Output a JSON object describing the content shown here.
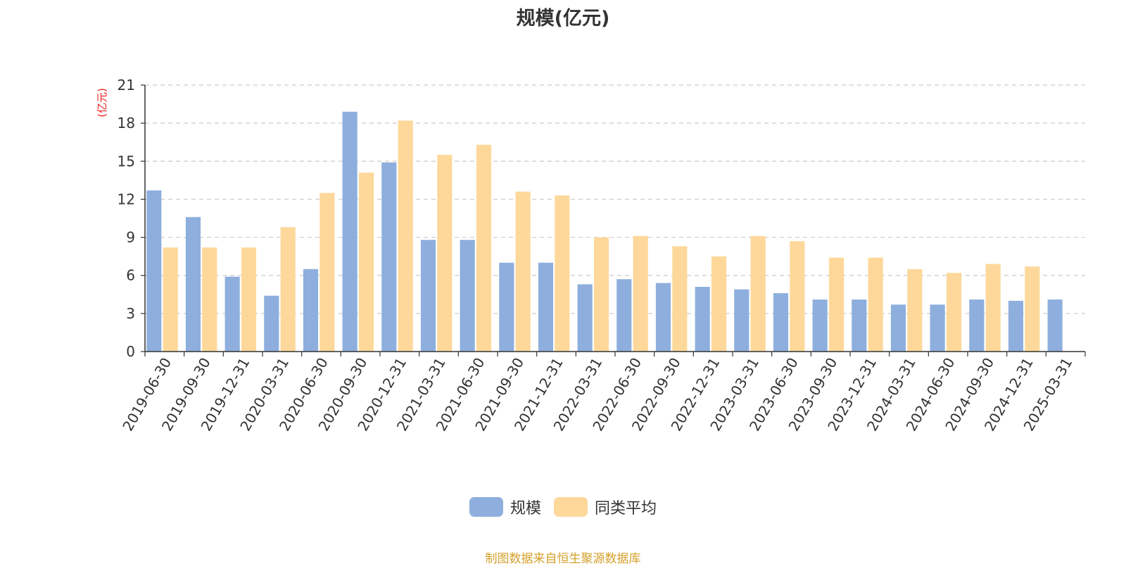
{
  "title": "规模(亿元)",
  "source_note": "制图数据来自恒生聚源数据库",
  "colors": {
    "series_1": "#8eafdd",
    "series_2": "#fdd89a",
    "unit_label": "#e8231f",
    "axis": "#333333",
    "grid": "#cccccc"
  },
  "chart_data": {
    "type": "bar",
    "title": "规模(亿元)",
    "ylabel": "(亿元)",
    "xlabel": "",
    "ylim": [
      0,
      21
    ],
    "yticks": [
      0,
      3,
      6,
      9,
      12,
      15,
      18,
      21
    ],
    "grid": true,
    "legend_position": "bottom",
    "categories": [
      "2019-06-30",
      "2019-09-30",
      "2019-12-31",
      "2020-03-31",
      "2020-06-30",
      "2020-09-30",
      "2020-12-31",
      "2021-03-31",
      "2021-06-30",
      "2021-09-30",
      "2021-12-31",
      "2022-03-31",
      "2022-06-30",
      "2022-09-30",
      "2022-12-31",
      "2023-03-31",
      "2023-06-30",
      "2023-09-30",
      "2023-12-31",
      "2024-03-31",
      "2024-06-30",
      "2024-09-30",
      "2024-12-31",
      "2025-03-31"
    ],
    "series": [
      {
        "name": "规模",
        "values": [
          12.7,
          10.6,
          5.9,
          4.4,
          6.5,
          18.9,
          14.9,
          8.8,
          8.8,
          7.0,
          7.0,
          5.3,
          5.7,
          5.4,
          5.1,
          4.9,
          4.6,
          4.1,
          4.1,
          3.7,
          3.7,
          4.1,
          4.0,
          4.1
        ]
      },
      {
        "name": "同类平均",
        "values": [
          8.2,
          8.2,
          8.2,
          9.8,
          12.5,
          14.1,
          18.2,
          15.5,
          16.3,
          12.6,
          12.3,
          9.0,
          9.1,
          8.3,
          7.5,
          9.1,
          8.7,
          7.4,
          7.4,
          6.5,
          6.2,
          6.9,
          6.7,
          null
        ]
      }
    ]
  }
}
